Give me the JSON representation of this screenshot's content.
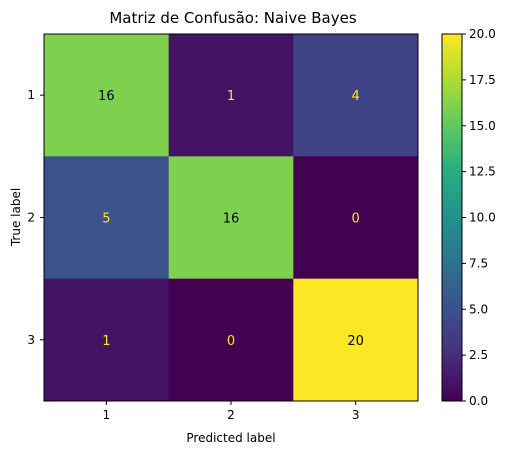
{
  "chart_data": {
    "type": "heatmap",
    "title": "Matriz de Confusão: Naive Bayes",
    "xlabel": "Predicted label",
    "ylabel": "True label",
    "x_categories": [
      "1",
      "2",
      "3"
    ],
    "y_categories": [
      "1",
      "2",
      "3"
    ],
    "matrix": [
      [
        16,
        1,
        4
      ],
      [
        5,
        16,
        0
      ],
      [
        1,
        0,
        20
      ]
    ],
    "colormap": "viridis",
    "vmin": 0,
    "vmax": 20,
    "colorbar_ticks": [
      "0.0",
      "2.5",
      "5.0",
      "7.5",
      "10.0",
      "12.5",
      "15.0",
      "17.5",
      "20.0"
    ],
    "colorbar_values": [
      0,
      2.5,
      5,
      7.5,
      10,
      12.5,
      15,
      17.5,
      20
    ],
    "label_color_dark": "#000000",
    "label_color_light": "#fde725"
  }
}
